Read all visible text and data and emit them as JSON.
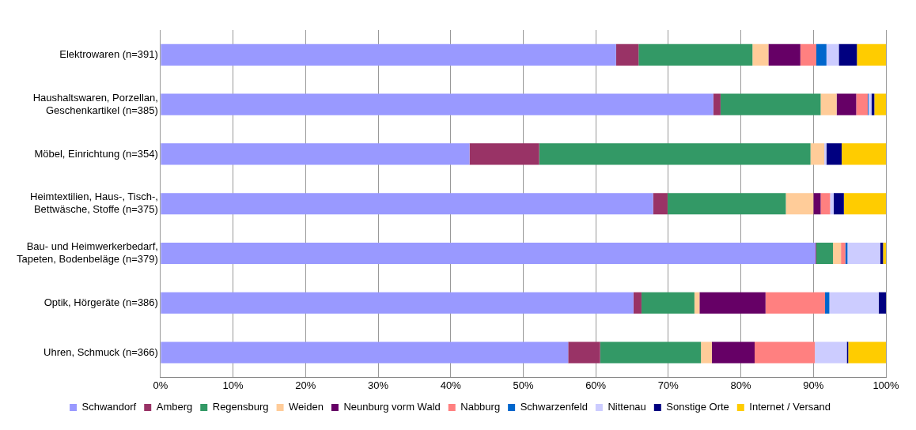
{
  "chart_data": {
    "type": "bar",
    "orientation": "horizontal",
    "stacked": true,
    "categories": [
      "Elektrowaren (n=391)",
      "Haushaltswaren, Porzellan,\nGeschenkartikel (n=385)",
      "Möbel, Einrichtung (n=354)",
      "Heimtextilien, Haus-, Tisch-,\nBettwäsche, Stoffe (n=375)",
      "Bau- und Heimwerkerbedarf,\nTapeten, Bodenbeläge (n=379)",
      "Optik, Hörgeräte (n=386)",
      "Uhren, Schmuck (n=366)"
    ],
    "series": [
      {
        "name": "Schwandorf",
        "color": "#9999ff",
        "values": [
          62.8,
          76.2,
          42.6,
          67.9,
          90.3,
          65.2,
          56.2
        ]
      },
      {
        "name": "Amberg",
        "color": "#993366",
        "values": [
          3.1,
          1.0,
          9.6,
          2.0,
          0.1,
          1.1,
          4.4
        ]
      },
      {
        "name": "Regensburg",
        "color": "#339966",
        "values": [
          15.7,
          13.8,
          37.4,
          16.3,
          2.3,
          7.3,
          13.9
        ]
      },
      {
        "name": "Weiden",
        "color": "#ffcc99",
        "values": [
          2.2,
          2.2,
          1.9,
          3.8,
          1.1,
          0.7,
          1.5
        ]
      },
      {
        "name": "Neunburg vorm Wald",
        "color": "#660066",
        "values": [
          4.4,
          2.7,
          0,
          1.0,
          0,
          9.1,
          5.9
        ]
      },
      {
        "name": "Nabburg",
        "color": "#ff8080",
        "values": [
          2.2,
          1.6,
          0,
          1.3,
          0.6,
          8.2,
          8.3
        ]
      },
      {
        "name": "Schwarzenfeld",
        "color": "#0066cc",
        "values": [
          1.4,
          0.1,
          0,
          0,
          0.3,
          0.6,
          0
        ]
      },
      {
        "name": "Nittenau",
        "color": "#ccccff",
        "values": [
          1.7,
          0.4,
          0.3,
          0.5,
          4.5,
          6.8,
          4.4
        ]
      },
      {
        "name": "Sonstige Orte",
        "color": "#000080",
        "values": [
          2.5,
          0.4,
          2.1,
          1.4,
          0.4,
          1.0,
          0.2
        ]
      },
      {
        "name": "Internet / Versand",
        "color": "#ffcc00",
        "values": [
          4.0,
          1.6,
          6.1,
          5.8,
          0.4,
          0,
          5.2
        ]
      }
    ],
    "xlim": [
      0,
      100
    ],
    "xticks": [
      {
        "value": 0,
        "label": "0%"
      },
      {
        "value": 10,
        "label": "10%"
      },
      {
        "value": 20,
        "label": "20%"
      },
      {
        "value": 30,
        "label": "30%"
      },
      {
        "value": 40,
        "label": "40%"
      },
      {
        "value": 50,
        "label": "50%"
      },
      {
        "value": 60,
        "label": "60%"
      },
      {
        "value": 70,
        "label": "70%"
      },
      {
        "value": 80,
        "label": "80%"
      },
      {
        "value": 90,
        "label": "90%"
      },
      {
        "value": 100,
        "label": "100%"
      }
    ],
    "grid": "x",
    "legend": "bottom"
  }
}
